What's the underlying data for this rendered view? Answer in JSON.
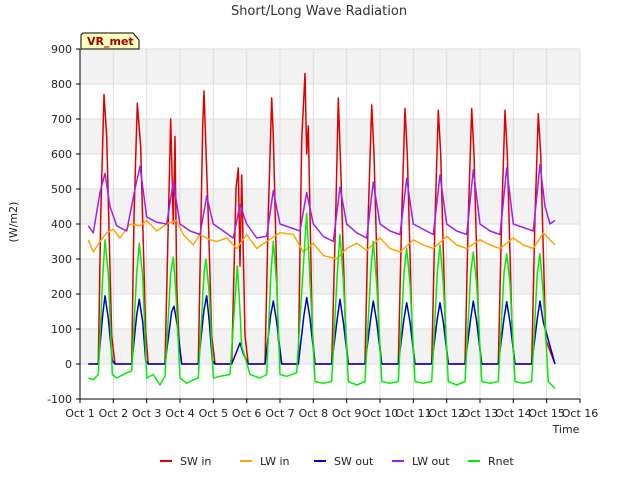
{
  "chart_data": {
    "type": "line",
    "title": "Short/Long Wave Radiation",
    "ylabel": "(W/m2)",
    "xlabel": "Time",
    "badge": "VR_met",
    "ylim": [
      -100,
      900
    ],
    "xlim": [
      1,
      16
    ],
    "y_ticks": [
      -100,
      0,
      100,
      200,
      300,
      400,
      500,
      600,
      700,
      800,
      900
    ],
    "x_ticks": [
      {
        "value": 1,
        "label": "Oct 1"
      },
      {
        "value": 2,
        "label": "Oct 2"
      },
      {
        "value": 3,
        "label": "Oct 3"
      },
      {
        "value": 4,
        "label": "Oct 4"
      },
      {
        "value": 5,
        "label": "Oct 5"
      },
      {
        "value": 6,
        "label": "Oct 6"
      },
      {
        "value": 7,
        "label": "Oct 7"
      },
      {
        "value": 8,
        "label": "Oct 8"
      },
      {
        "value": 9,
        "label": "Oct 9"
      },
      {
        "value": 10,
        "label": "Oct 10"
      },
      {
        "value": 11,
        "label": "Oct 11"
      },
      {
        "value": 12,
        "label": "Oct 12"
      },
      {
        "value": 13,
        "label": "Oct 13"
      },
      {
        "value": 14,
        "label": "Oct 14"
      },
      {
        "value": 15,
        "label": "Oct 15"
      },
      {
        "value": 16,
        "label": "Oct 16"
      }
    ],
    "grid": true,
    "background_bands": true,
    "legend_position": "bottom",
    "series": [
      {
        "name": "SW in",
        "color": "#e00000",
        "x": [
          1.25,
          1.55,
          1.62,
          1.72,
          1.8,
          1.95,
          2.05,
          2.55,
          2.62,
          2.72,
          2.82,
          2.97,
          3.05,
          3.55,
          3.72,
          3.8,
          3.85,
          3.9,
          3.97,
          4.05,
          4.55,
          4.68,
          4.72,
          4.78,
          4.85,
          4.95,
          5.05,
          5.55,
          5.68,
          5.75,
          5.8,
          5.85,
          5.95,
          6.05,
          6.55,
          6.65,
          6.75,
          6.8,
          6.95,
          7.05,
          7.55,
          7.65,
          7.75,
          7.8,
          7.85,
          7.97,
          8.05,
          8.55,
          8.68,
          8.75,
          8.82,
          8.97,
          9.05,
          9.55,
          9.65,
          9.75,
          9.82,
          9.97,
          10.05,
          10.55,
          10.65,
          10.75,
          10.82,
          10.97,
          11.05,
          11.55,
          11.65,
          11.75,
          11.82,
          11.97,
          12.05,
          12.55,
          12.65,
          12.75,
          12.82,
          12.97,
          13.05,
          13.55,
          13.65,
          13.75,
          13.82,
          13.97,
          14.05,
          14.55,
          14.65,
          14.75,
          14.82,
          14.97,
          15.25
        ],
        "y": [
          0,
          0,
          420,
          770,
          650,
          80,
          0,
          0,
          420,
          745,
          620,
          90,
          0,
          0,
          700,
          400,
          650,
          230,
          60,
          0,
          0,
          680,
          780,
          610,
          420,
          80,
          0,
          0,
          500,
          560,
          280,
          540,
          80,
          0,
          0,
          430,
          760,
          650,
          70,
          0,
          0,
          640,
          830,
          600,
          680,
          90,
          0,
          0,
          460,
          760,
          560,
          80,
          0,
          0,
          430,
          740,
          600,
          80,
          0,
          0,
          420,
          730,
          600,
          70,
          0,
          0,
          410,
          725,
          600,
          70,
          0,
          0,
          420,
          730,
          600,
          70,
          0,
          0,
          420,
          725,
          600,
          70,
          0,
          0,
          420,
          715,
          600,
          70,
          0
        ]
      },
      {
        "name": "LW in",
        "color": "#ffa500",
        "x": [
          1.25,
          1.4,
          1.6,
          1.8,
          2.0,
          2.2,
          2.5,
          2.8,
          3.0,
          3.3,
          3.6,
          3.9,
          4.1,
          4.4,
          4.6,
          4.9,
          5.1,
          5.4,
          5.7,
          6.0,
          6.3,
          6.6,
          7.0,
          7.4,
          7.7,
          8.0,
          8.3,
          8.7,
          9.0,
          9.3,
          9.6,
          10.0,
          10.3,
          10.6,
          11.0,
          11.3,
          11.6,
          12.0,
          12.3,
          12.6,
          13.0,
          13.3,
          13.6,
          14.0,
          14.3,
          14.6,
          14.9,
          15.25
        ],
        "y": [
          355,
          320,
          350,
          375,
          385,
          360,
          400,
          395,
          410,
          380,
          400,
          410,
          370,
          340,
          370,
          355,
          350,
          360,
          330,
          370,
          330,
          350,
          375,
          370,
          320,
          345,
          310,
          300,
          330,
          345,
          325,
          360,
          330,
          320,
          355,
          340,
          330,
          365,
          340,
          330,
          355,
          340,
          330,
          360,
          340,
          330,
          375,
          340
        ]
      },
      {
        "name": "SW out",
        "color": "#0000cc",
        "x": [
          1.25,
          1.55,
          1.68,
          1.75,
          1.85,
          1.97,
          2.05,
          2.55,
          2.7,
          2.78,
          2.88,
          2.97,
          3.05,
          3.55,
          3.75,
          3.82,
          3.92,
          4.05,
          4.55,
          4.72,
          4.8,
          4.88,
          4.97,
          5.05,
          5.55,
          5.72,
          5.8,
          5.9,
          6.05,
          6.55,
          6.72,
          6.8,
          6.9,
          7.05,
          7.55,
          7.72,
          7.8,
          7.9,
          8.05,
          8.55,
          8.72,
          8.8,
          8.9,
          9.05,
          9.55,
          9.72,
          9.8,
          9.9,
          10.05,
          10.55,
          10.72,
          10.8,
          10.9,
          11.05,
          11.55,
          11.72,
          11.8,
          11.9,
          12.05,
          12.55,
          12.72,
          12.8,
          12.9,
          13.05,
          13.55,
          13.72,
          13.8,
          13.9,
          14.05,
          14.55,
          14.72,
          14.8,
          14.9,
          15.25
        ],
        "y": [
          0,
          0,
          140,
          195,
          130,
          10,
          0,
          0,
          140,
          185,
          120,
          10,
          0,
          0,
          150,
          165,
          110,
          0,
          0,
          155,
          195,
          120,
          10,
          0,
          0,
          40,
          60,
          30,
          0,
          0,
          140,
          180,
          120,
          0,
          0,
          140,
          190,
          130,
          0,
          0,
          130,
          185,
          120,
          0,
          0,
          130,
          180,
          120,
          0,
          0,
          130,
          175,
          120,
          0,
          0,
          130,
          175,
          120,
          0,
          0,
          130,
          180,
          120,
          0,
          0,
          130,
          178,
          120,
          0,
          0,
          130,
          180,
          120,
          0
        ]
      },
      {
        "name": "LW out",
        "color": "#a020f0",
        "x": [
          1.25,
          1.4,
          1.6,
          1.75,
          1.9,
          2.1,
          2.4,
          2.65,
          2.8,
          3.0,
          3.3,
          3.6,
          3.8,
          4.0,
          4.3,
          4.6,
          4.8,
          5.0,
          5.3,
          5.6,
          5.8,
          6.0,
          6.3,
          6.6,
          6.8,
          7.0,
          7.3,
          7.6,
          7.8,
          8.0,
          8.3,
          8.6,
          8.8,
          9.0,
          9.3,
          9.6,
          9.8,
          10.0,
          10.3,
          10.6,
          10.8,
          11.0,
          11.3,
          11.6,
          11.8,
          12.0,
          12.3,
          12.6,
          12.8,
          13.0,
          13.3,
          13.6,
          13.8,
          14.0,
          14.3,
          14.6,
          14.8,
          14.95,
          15.1,
          15.25
        ],
        "y": [
          395,
          375,
          490,
          545,
          450,
          395,
          380,
          500,
          565,
          420,
          405,
          400,
          520,
          400,
          380,
          370,
          480,
          400,
          380,
          360,
          455,
          400,
          360,
          365,
          495,
          400,
          390,
          380,
          490,
          400,
          365,
          350,
          505,
          400,
          375,
          360,
          520,
          400,
          380,
          370,
          530,
          400,
          385,
          370,
          540,
          400,
          380,
          370,
          555,
          400,
          380,
          370,
          560,
          400,
          390,
          380,
          570,
          450,
          400,
          410
        ]
      },
      {
        "name": "Rnet",
        "color": "#00ee00",
        "x": [
          1.25,
          1.4,
          1.55,
          1.68,
          1.75,
          1.85,
          1.97,
          2.1,
          2.4,
          2.55,
          2.7,
          2.78,
          2.88,
          3.0,
          3.2,
          3.4,
          3.55,
          3.72,
          3.8,
          3.88,
          4.0,
          4.2,
          4.4,
          4.55,
          4.72,
          4.78,
          4.88,
          5.0,
          5.2,
          5.5,
          5.72,
          5.78,
          5.85,
          5.95,
          6.1,
          6.4,
          6.6,
          6.72,
          6.8,
          6.9,
          7.0,
          7.2,
          7.5,
          7.72,
          7.8,
          7.9,
          8.05,
          8.3,
          8.55,
          8.72,
          8.8,
          8.9,
          9.05,
          9.3,
          9.55,
          9.72,
          9.8,
          9.9,
          10.05,
          10.3,
          10.55,
          10.72,
          10.8,
          10.9,
          11.05,
          11.3,
          11.55,
          11.72,
          11.8,
          11.9,
          12.05,
          12.3,
          12.55,
          12.72,
          12.8,
          12.9,
          13.05,
          13.3,
          13.55,
          13.72,
          13.8,
          13.9,
          14.05,
          14.3,
          14.55,
          14.72,
          14.8,
          14.9,
          15.05,
          15.25
        ],
        "y": [
          -40,
          -45,
          -30,
          250,
          355,
          260,
          -30,
          -40,
          -25,
          -20,
          260,
          345,
          250,
          -40,
          -30,
          -60,
          -35,
          260,
          305,
          200,
          -40,
          -55,
          -45,
          -40,
          260,
          300,
          200,
          -40,
          -35,
          -30,
          280,
          190,
          50,
          20,
          -30,
          -40,
          -30,
          250,
          350,
          230,
          -30,
          -35,
          -25,
          310,
          430,
          240,
          -50,
          -55,
          -50,
          260,
          370,
          240,
          -50,
          -60,
          -50,
          260,
          350,
          230,
          -50,
          -55,
          -50,
          260,
          330,
          230,
          -50,
          -55,
          -50,
          260,
          340,
          230,
          -50,
          -60,
          -50,
          260,
          320,
          230,
          -50,
          -55,
          -50,
          260,
          315,
          230,
          -50,
          -55,
          -50,
          260,
          315,
          200,
          -50,
          -70
        ]
      }
    ]
  }
}
